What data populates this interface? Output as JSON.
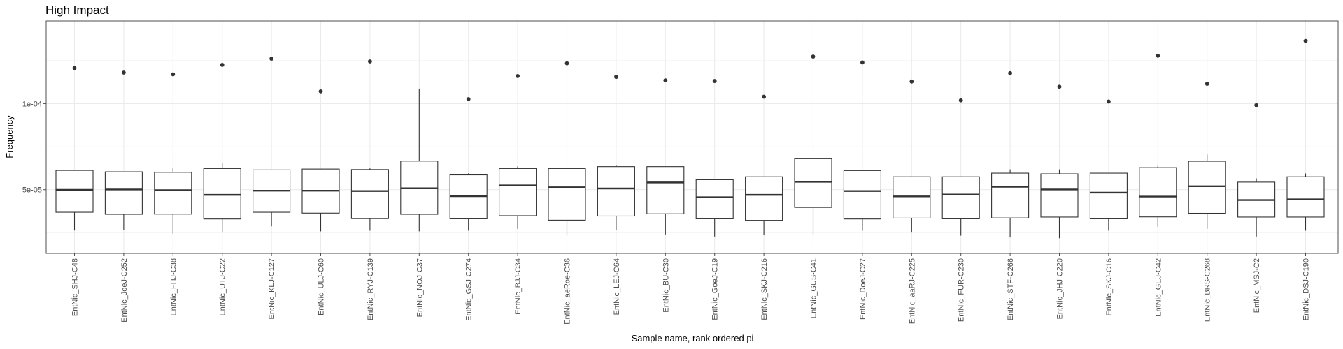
{
  "chart_data": {
    "type": "boxplot",
    "title": "High Impact",
    "xlabel": "Sample name, rank ordered pi",
    "ylabel": "Frequency",
    "ylim": [
      1.3e-05,
      0.000148
    ],
    "yticks": [
      5e-05,
      0.0001
    ],
    "ytick_labels": [
      "5e-05",
      "1e-04"
    ],
    "grid": true,
    "categories": [
      "EntNic_SHJ-C48",
      "EntNic_JoeJ-C252",
      "EntNic_FHJ-C38",
      "EntNic_UTJ-C22",
      "EntNic_KLJ-C127",
      "EntNic_ULJ-C60",
      "EntNic_RYJ-C139",
      "EntNic_NOJ-C37",
      "EntNic_GSJ-C274",
      "EntNic_BJJ-C34",
      "EntNic_aeRoe-C36",
      "EntNic_LEJ-C64",
      "EntNic_BU-C30",
      "EntNic_GoeJ-C19",
      "EntNic_SKJ-C216",
      "EntNic_GUS-C41",
      "EntNic_DoeJ-C27",
      "EntNic_aaRJ-C225",
      "EntNic_FUR-C230",
      "EntNic_STF-C266",
      "EntNic_JHJ-C220",
      "EntNic_SKJ-C16",
      "EntNic_GEJ-C42",
      "EntNic_BRS-C268",
      "EntNic_MSJ-C2",
      "EntNic_DSJ-C190"
    ],
    "boxes": [
      {
        "whisker_low": 2.63e-05,
        "q1": 3.69e-05,
        "median": 4.99e-05,
        "q3": 6.12e-05,
        "whisker_high": 6.12e-05,
        "outliers": [
          0.0001206
        ]
      },
      {
        "whisker_low": 2.66e-05,
        "q1": 3.57e-05,
        "median": 5.01e-05,
        "q3": 6.04e-05,
        "whisker_high": 6.04e-05,
        "outliers": [
          0.000118
        ]
      },
      {
        "whisker_low": 2.45e-05,
        "q1": 3.58e-05,
        "median": 4.97e-05,
        "q3": 6.01e-05,
        "whisker_high": 6.24e-05,
        "outliers": [
          0.000117
        ]
      },
      {
        "whisker_low": 2.51e-05,
        "q1": 3.3e-05,
        "median": 4.7e-05,
        "q3": 6.23e-05,
        "whisker_high": 6.56e-05,
        "outliers": [
          0.0001225
        ]
      },
      {
        "whisker_low": 2.87e-05,
        "q1": 3.69e-05,
        "median": 4.94e-05,
        "q3": 6.15e-05,
        "whisker_high": 6.15e-05,
        "outliers": [
          0.0001261
        ]
      },
      {
        "whisker_low": 2.58e-05,
        "q1": 3.64e-05,
        "median": 4.94e-05,
        "q3": 6.2e-05,
        "whisker_high": 6.2e-05,
        "outliers": [
          0.0001071
        ]
      },
      {
        "whisker_low": 2.62e-05,
        "q1": 3.32e-05,
        "median": 4.92e-05,
        "q3": 6.17e-05,
        "whisker_high": 6.24e-05,
        "outliers": [
          0.0001245
        ]
      },
      {
        "whisker_low": 2.58e-05,
        "q1": 3.57e-05,
        "median": 5.08e-05,
        "q3": 6.66e-05,
        "whisker_high": 0.0001087,
        "outliers": []
      },
      {
        "whisker_low": 2.62e-05,
        "q1": 3.31e-05,
        "median": 4.62e-05,
        "q3": 5.86e-05,
        "whisker_high": 5.95e-05,
        "outliers": [
          0.0001026
        ]
      },
      {
        "whisker_low": 2.73e-05,
        "q1": 3.49e-05,
        "median": 5.25e-05,
        "q3": 6.23e-05,
        "whisker_high": 6.36e-05,
        "outliers": [
          0.000116
        ]
      },
      {
        "whisker_low": 2.34e-05,
        "q1": 3.23e-05,
        "median": 5.14e-05,
        "q3": 6.23e-05,
        "whisker_high": 6.23e-05,
        "outliers": [
          0.0001234
        ]
      },
      {
        "whisker_low": 2.66e-05,
        "q1": 3.47e-05,
        "median": 5.07e-05,
        "q3": 6.34e-05,
        "whisker_high": 6.43e-05,
        "outliers": [
          0.0001155
        ]
      },
      {
        "whisker_low": 2.4e-05,
        "q1": 3.6e-05,
        "median": 5.42e-05,
        "q3": 6.34e-05,
        "whisker_high": 6.34e-05,
        "outliers": [
          0.0001135
        ]
      },
      {
        "whisker_low": 2.28e-05,
        "q1": 3.31e-05,
        "median": 4.56e-05,
        "q3": 5.58e-05,
        "whisker_high": 5.58e-05,
        "outliers": [
          0.0001131
        ]
      },
      {
        "whisker_low": 2.39e-05,
        "q1": 3.22e-05,
        "median": 4.7e-05,
        "q3": 5.75e-05,
        "whisker_high": 5.75e-05,
        "outliers": [
          0.000104
        ]
      },
      {
        "whisker_low": 2.4e-05,
        "q1": 3.97e-05,
        "median": 5.46e-05,
        "q3": 6.8e-05,
        "whisker_high": 6.8e-05,
        "outliers": [
          0.0001273
        ]
      },
      {
        "whisker_low": 2.62e-05,
        "q1": 3.3e-05,
        "median": 4.92e-05,
        "q3": 6.11e-05,
        "whisker_high": 6.11e-05,
        "outliers": [
          0.0001239
        ]
      },
      {
        "whisker_low": 2.51e-05,
        "q1": 3.35e-05,
        "median": 4.61e-05,
        "q3": 5.75e-05,
        "whisker_high": 5.75e-05,
        "outliers": [
          0.0001128
        ]
      },
      {
        "whisker_low": 2.33e-05,
        "q1": 3.31e-05,
        "median": 4.72e-05,
        "q3": 5.75e-05,
        "whisker_high": 5.75e-05,
        "outliers": [
          0.0001019
        ]
      },
      {
        "whisker_low": 2.23e-05,
        "q1": 3.36e-05,
        "median": 5.17e-05,
        "q3": 5.96e-05,
        "whisker_high": 6.18e-05,
        "outliers": [
          0.0001177
        ]
      },
      {
        "whisker_low": 2.18e-05,
        "q1": 3.41e-05,
        "median": 5.01e-05,
        "q3": 5.92e-05,
        "whisker_high": 6.18e-05,
        "outliers": [
          0.0001098
        ]
      },
      {
        "whisker_low": 2.62e-05,
        "q1": 3.31e-05,
        "median": 4.83e-05,
        "q3": 5.96e-05,
        "whisker_high": 5.96e-05,
        "outliers": [
          0.0001012
        ]
      },
      {
        "whisker_low": 2.84e-05,
        "q1": 3.42e-05,
        "median": 4.6e-05,
        "q3": 6.28e-05,
        "whisker_high": 6.39e-05,
        "outliers": [
          0.0001278
        ]
      },
      {
        "whisker_low": 2.73e-05,
        "q1": 3.63e-05,
        "median": 5.2e-05,
        "q3": 6.65e-05,
        "whisker_high": 7.04e-05,
        "outliers": [
          0.0001115
        ]
      },
      {
        "whisker_low": 2.28e-05,
        "q1": 3.41e-05,
        "median": 4.4e-05,
        "q3": 5.44e-05,
        "whisker_high": 5.66e-05,
        "outliers": [
          9.91e-05
        ]
      },
      {
        "whisker_low": 2.62e-05,
        "q1": 3.41e-05,
        "median": 4.44e-05,
        "q3": 5.75e-05,
        "whisker_high": 5.94e-05,
        "outliers": [
          0.0001364
        ]
      }
    ],
    "colors": {
      "panel_border": "#4d4d4d",
      "grid_major": "#ebebeb",
      "grid_minor": "#f2f2f2",
      "box_fill": "#ffffff",
      "box_line": "#333333",
      "point": "#333333"
    }
  }
}
